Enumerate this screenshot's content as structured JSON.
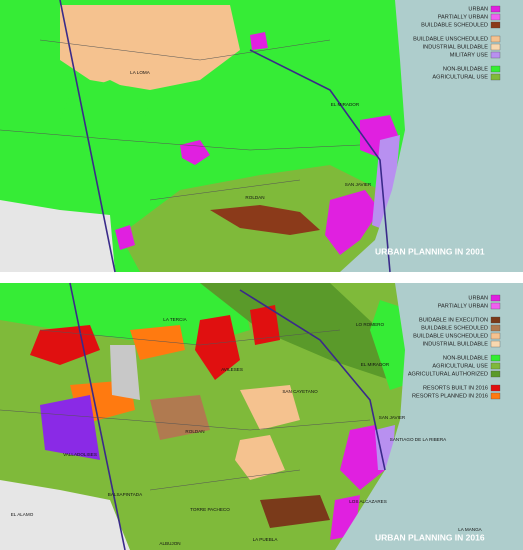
{
  "panels": [
    {
      "title": "URBAN PLANNING IN 2001",
      "legend_groups": [
        [
          {
            "label": "URBAN",
            "color": "#e020e0"
          },
          {
            "label": "PARTIALLY URBAN",
            "color": "#f060f0"
          },
          {
            "label": "BUILDABLE SCHEDULED",
            "color": "#8b3a1a"
          }
        ],
        [
          {
            "label": "BUILDABLE UNSCHEDULED",
            "color": "#f5c28f"
          },
          {
            "label": "INDUSTRIAL BUILDABLE",
            "color": "#f8d8b0"
          },
          {
            "label": "MILITARY USE",
            "color": "#b890f0"
          }
        ],
        [
          {
            "label": "NON-BUILDABLE",
            "color": "#33ee33"
          },
          {
            "label": "AGRICULTURAL USE",
            "color": "#7fba3a"
          }
        ]
      ],
      "places": [
        "LA LOMA",
        "EL MIRADOR",
        "ROLDAN",
        "SAN JAVIER"
      ]
    },
    {
      "title": "URBAN PLANNING IN 2016",
      "legend_groups": [
        [
          {
            "label": "URBAN",
            "color": "#e020e0"
          },
          {
            "label": "PARTIALLY URBAN",
            "color": "#f060f0"
          }
        ],
        [
          {
            "label": "BUIDABLE IN EXECUTION",
            "color": "#7a3a1a"
          },
          {
            "label": "BUILDABLE SCHEDULED",
            "color": "#b07a50"
          },
          {
            "label": "BUILDABLE UNSCHEDULED",
            "color": "#f5c28f"
          },
          {
            "label": "INDUSTRIAL BUILDABLE",
            "color": "#f8d8b0"
          }
        ],
        [
          {
            "label": "NON-BUILDABLE",
            "color": "#33ee33"
          },
          {
            "label": "AGRICULTURAL USE",
            "color": "#7fba3a"
          },
          {
            "label": "AGRICULTURAL AUTHORIZED",
            "color": "#5a9a2a"
          }
        ],
        [
          {
            "label": "RESORTS BUILT IN 2016",
            "color": "#e01010"
          },
          {
            "label": "RESORTS PLANNED IN 2016",
            "color": "#ff7a10"
          }
        ]
      ],
      "places": [
        "LA TERCIA",
        "LO ROMERO",
        "AVILESES",
        "SAN CAYETANO",
        "EL MIRADOR",
        "VALLADOLISES",
        "ROLDAN",
        "SAN JAVIER",
        "SANTIAGO DE LA RIBERA",
        "LOS ALCAZARES",
        "TORRE PACHECO",
        "BALSAPINTADA",
        "EL ALAMO",
        "LA PUEBLA",
        "ALBUJON",
        "LA MANGA"
      ]
    }
  ]
}
